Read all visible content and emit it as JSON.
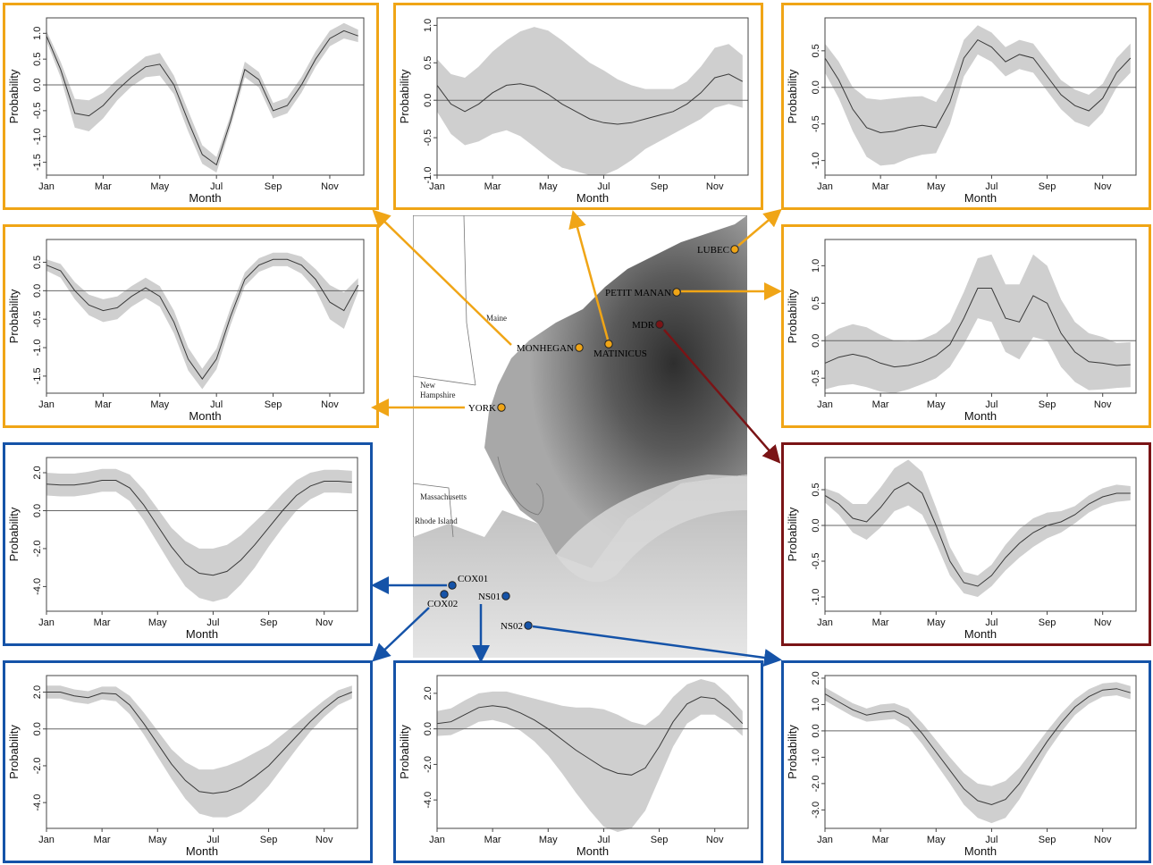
{
  "colors": {
    "gulf_of_maine": "#f0a516",
    "mdr": "#7a1416",
    "southern": "#1553a8",
    "band": "#cfcfcf",
    "line": "#3a3a3a"
  },
  "map": {
    "state_labels": [
      "Maine",
      "New Hampshire",
      "Massachusetts",
      "Rhode Island"
    ],
    "stations": [
      {
        "id": "lubec",
        "name": "LUBEC",
        "group": "gulf_of_maine"
      },
      {
        "id": "petit_manan",
        "name": "PETIT MANAN",
        "group": "gulf_of_maine"
      },
      {
        "id": "mdr",
        "name": "MDR",
        "group": "mdr"
      },
      {
        "id": "monhegan",
        "name": "MONHEGAN",
        "group": "gulf_of_maine"
      },
      {
        "id": "matinicus",
        "name": "MATINICUS",
        "group": "gulf_of_maine"
      },
      {
        "id": "york",
        "name": "YORK",
        "group": "gulf_of_maine"
      },
      {
        "id": "cox01",
        "name": "COX01",
        "group": "southern"
      },
      {
        "id": "cox02",
        "name": "COX02",
        "group": "southern"
      },
      {
        "id": "ns01",
        "name": "NS01",
        "group": "southern"
      },
      {
        "id": "ns02",
        "name": "NS02",
        "group": "southern"
      }
    ]
  },
  "chart_data": [
    {
      "station": "MONHEGAN",
      "type": "line",
      "xlabel": "Month",
      "ylabel": "Probability",
      "x_ticks": [
        "Jan",
        "Mar",
        "May",
        "Jul",
        "Sep",
        "Nov"
      ],
      "xlim": [
        1,
        12.2
      ],
      "ylim": [
        -1.75,
        1.3
      ],
      "y_ticks": [
        -1.5,
        -1.0,
        -0.5,
        0.0,
        0.5,
        1.0
      ],
      "y_tick_labels": [
        "-1.5",
        "-1.0",
        "-0.5",
        "0.0",
        "0.5",
        "1.0"
      ],
      "x": [
        1,
        1.5,
        2,
        2.5,
        3,
        3.5,
        4,
        4.5,
        5,
        5.5,
        6,
        6.5,
        7,
        7.5,
        8,
        8.5,
        9,
        9.5,
        10,
        10.5,
        11,
        11.5,
        12
      ],
      "y": [
        0.95,
        0.3,
        -0.55,
        -0.6,
        -0.4,
        -0.1,
        0.15,
        0.35,
        0.4,
        0.0,
        -0.7,
        -1.35,
        -1.55,
        -0.7,
        0.3,
        0.1,
        -0.5,
        -0.4,
        0.0,
        0.5,
        0.9,
        1.05,
        0.95
      ],
      "half_width": [
        0.1,
        0.15,
        0.28,
        0.3,
        0.25,
        0.2,
        0.18,
        0.2,
        0.22,
        0.18,
        0.2,
        0.18,
        0.15,
        0.12,
        0.15,
        0.15,
        0.15,
        0.15,
        0.15,
        0.15,
        0.15,
        0.15,
        0.12
      ]
    },
    {
      "station": "MATINICUS",
      "type": "line",
      "xlabel": "Month",
      "ylabel": "Probability",
      "x_ticks": [
        "Jan",
        "Mar",
        "May",
        "Jul",
        "Sep",
        "Nov"
      ],
      "xlim": [
        1,
        12.2
      ],
      "ylim": [
        -1.0,
        1.1
      ],
      "y_ticks": [
        -1.0,
        -0.5,
        0.0,
        0.5,
        1.0
      ],
      "y_tick_labels": [
        "-1.0",
        "-0.5",
        "0.0",
        "0.5",
        "1.0"
      ],
      "x": [
        1,
        1.5,
        2,
        2.5,
        3,
        3.5,
        4,
        4.5,
        5,
        5.5,
        6,
        6.5,
        7,
        7.5,
        8,
        8.5,
        9,
        9.5,
        10,
        10.5,
        11,
        11.5,
        12
      ],
      "y": [
        0.2,
        -0.05,
        -0.15,
        -0.05,
        0.1,
        0.2,
        0.22,
        0.18,
        0.08,
        -0.05,
        -0.15,
        -0.25,
        -0.3,
        -0.32,
        -0.3,
        -0.25,
        -0.2,
        -0.15,
        -0.05,
        0.1,
        0.3,
        0.35,
        0.25
      ],
      "half_width": [
        0.35,
        0.4,
        0.45,
        0.5,
        0.55,
        0.6,
        0.7,
        0.8,
        0.85,
        0.85,
        0.8,
        0.75,
        0.7,
        0.6,
        0.5,
        0.4,
        0.35,
        0.3,
        0.3,
        0.35,
        0.4,
        0.4,
        0.35
      ]
    },
    {
      "station": "LUBEC",
      "type": "line",
      "xlabel": "Month",
      "ylabel": "Probability",
      "x_ticks": [
        "Jan",
        "Mar",
        "May",
        "Jul",
        "Sep",
        "Nov"
      ],
      "xlim": [
        1,
        12.2
      ],
      "ylim": [
        -1.2,
        0.95
      ],
      "y_ticks": [
        -1.0,
        -0.5,
        0.0,
        0.5
      ],
      "y_tick_labels": [
        "-1.0",
        "-0.5",
        "0.0",
        "0.5"
      ],
      "x": [
        1,
        1.5,
        2,
        2.5,
        3,
        3.5,
        4,
        4.5,
        5,
        5.5,
        6,
        6.5,
        7,
        7.5,
        8,
        8.5,
        9,
        9.5,
        10,
        10.5,
        11,
        11.5,
        12
      ],
      "y": [
        0.4,
        0.1,
        -0.3,
        -0.55,
        -0.62,
        -0.6,
        -0.55,
        -0.52,
        -0.55,
        -0.2,
        0.4,
        0.65,
        0.55,
        0.35,
        0.45,
        0.4,
        0.15,
        -0.1,
        -0.25,
        -0.32,
        -0.15,
        0.2,
        0.4
      ],
      "half_width": [
        0.2,
        0.25,
        0.3,
        0.4,
        0.45,
        0.45,
        0.42,
        0.4,
        0.35,
        0.3,
        0.25,
        0.2,
        0.2,
        0.2,
        0.2,
        0.2,
        0.2,
        0.2,
        0.22,
        0.22,
        0.2,
        0.2,
        0.2
      ]
    },
    {
      "station": "YORK",
      "type": "line",
      "xlabel": "Month",
      "ylabel": "Probability",
      "x_ticks": [
        "Jan",
        "Mar",
        "May",
        "Jul",
        "Sep",
        "Nov"
      ],
      "xlim": [
        1,
        12.2
      ],
      "ylim": [
        -1.8,
        0.9
      ],
      "y_ticks": [
        -1.5,
        -1.0,
        -0.5,
        0.0,
        0.5
      ],
      "y_tick_labels": [
        "-1.5",
        "-1.0",
        "-0.5",
        "0.0",
        "0.5"
      ],
      "x": [
        1,
        1.5,
        2,
        2.5,
        3,
        3.5,
        4,
        4.5,
        5,
        5.5,
        6,
        6.5,
        7,
        7.5,
        8,
        8.5,
        9,
        9.5,
        10,
        10.5,
        11,
        11.5,
        12
      ],
      "y": [
        0.45,
        0.35,
        0.0,
        -0.25,
        -0.35,
        -0.3,
        -0.1,
        0.05,
        -0.1,
        -0.55,
        -1.2,
        -1.55,
        -1.2,
        -0.45,
        0.2,
        0.45,
        0.55,
        0.55,
        0.45,
        0.2,
        -0.2,
        -0.35,
        0.1
      ],
      "half_width": [
        0.1,
        0.12,
        0.15,
        0.18,
        0.2,
        0.2,
        0.18,
        0.18,
        0.18,
        0.2,
        0.2,
        0.18,
        0.18,
        0.15,
        0.12,
        0.12,
        0.12,
        0.12,
        0.15,
        0.18,
        0.3,
        0.32,
        0.12
      ]
    },
    {
      "station": "PETIT MANAN",
      "type": "line",
      "xlabel": "Month",
      "ylabel": "Probability",
      "x_ticks": [
        "Jan",
        "Mar",
        "May",
        "Jul",
        "Sep",
        "Nov"
      ],
      "xlim": [
        1,
        12.2
      ],
      "ylim": [
        -0.7,
        1.35
      ],
      "y_ticks": [
        -0.5,
        0.0,
        0.5,
        1.0
      ],
      "y_tick_labels": [
        "-0.5",
        "0.0",
        "0.5",
        "1.0"
      ],
      "x": [
        1,
        1.5,
        2,
        2.5,
        3,
        3.5,
        4,
        4.5,
        5,
        5.5,
        6,
        6.5,
        7,
        7.5,
        8,
        8.5,
        9,
        9.5,
        10,
        10.5,
        11,
        11.5,
        12
      ],
      "y": [
        -0.3,
        -0.22,
        -0.18,
        -0.22,
        -0.3,
        -0.35,
        -0.33,
        -0.28,
        -0.2,
        -0.05,
        0.3,
        0.7,
        0.7,
        0.3,
        0.25,
        0.6,
        0.5,
        0.1,
        -0.15,
        -0.28,
        -0.3,
        -0.33,
        -0.32
      ],
      "half_width": [
        0.35,
        0.38,
        0.4,
        0.4,
        0.38,
        0.35,
        0.32,
        0.3,
        0.3,
        0.3,
        0.35,
        0.4,
        0.45,
        0.45,
        0.5,
        0.55,
        0.5,
        0.45,
        0.4,
        0.38,
        0.35,
        0.3,
        0.3
      ]
    },
    {
      "station": "MDR",
      "type": "line",
      "xlabel": "Month",
      "ylabel": "Probability",
      "x_ticks": [
        "Jan",
        "Mar",
        "May",
        "Jul",
        "Sep",
        "Nov"
      ],
      "xlim": [
        1,
        12.2
      ],
      "ylim": [
        -1.2,
        0.95
      ],
      "y_ticks": [
        -1.0,
        -0.5,
        0.0,
        0.5
      ],
      "y_tick_labels": [
        "-1.0",
        "-0.5",
        "0.0",
        "0.5"
      ],
      "x": [
        1,
        1.5,
        2,
        2.5,
        3,
        3.5,
        4,
        4.5,
        5,
        5.5,
        6,
        6.5,
        7,
        7.5,
        8,
        8.5,
        9,
        9.5,
        10,
        10.5,
        11,
        11.5,
        12
      ],
      "y": [
        0.42,
        0.3,
        0.1,
        0.05,
        0.25,
        0.5,
        0.6,
        0.45,
        0.0,
        -0.5,
        -0.8,
        -0.85,
        -0.7,
        -0.45,
        -0.25,
        -0.1,
        0.0,
        0.05,
        0.15,
        0.3,
        0.4,
        0.45,
        0.45
      ],
      "half_width": [
        0.1,
        0.15,
        0.2,
        0.25,
        0.28,
        0.3,
        0.32,
        0.3,
        0.25,
        0.2,
        0.15,
        0.15,
        0.15,
        0.18,
        0.2,
        0.2,
        0.18,
        0.15,
        0.12,
        0.12,
        0.12,
        0.12,
        0.1
      ]
    },
    {
      "station": "COX01",
      "type": "line",
      "xlabel": "Month",
      "ylabel": "Probability",
      "x_ticks": [
        "Jan",
        "Mar",
        "May",
        "Jul",
        "Sep",
        "Nov"
      ],
      "xlim": [
        1,
        12.2
      ],
      "ylim": [
        -5.3,
        2.8
      ],
      "y_ticks": [
        -4.0,
        -2.0,
        0.0,
        2.0
      ],
      "y_tick_labels": [
        "-4.0",
        "-2.0",
        "0.0",
        "2.0"
      ],
      "x": [
        1,
        1.5,
        2,
        2.5,
        3,
        3.5,
        4,
        4.5,
        5,
        5.5,
        6,
        6.5,
        7,
        7.5,
        8,
        8.5,
        9,
        9.5,
        10,
        10.5,
        11,
        11.5,
        12
      ],
      "y": [
        1.4,
        1.35,
        1.35,
        1.45,
        1.6,
        1.6,
        1.2,
        0.3,
        -0.8,
        -1.9,
        -2.8,
        -3.3,
        -3.4,
        -3.2,
        -2.6,
        -1.8,
        -0.9,
        0.0,
        0.8,
        1.3,
        1.55,
        1.55,
        1.5
      ],
      "half_width": [
        0.6,
        0.6,
        0.6,
        0.6,
        0.6,
        0.6,
        0.7,
        0.8,
        0.9,
        1.0,
        1.2,
        1.3,
        1.4,
        1.4,
        1.3,
        1.2,
        1.0,
        0.9,
        0.8,
        0.7,
        0.6,
        0.6,
        0.6
      ]
    },
    {
      "station": "COX02",
      "type": "line",
      "xlabel": "Month",
      "ylabel": "Probability",
      "x_ticks": [
        "Jan",
        "Mar",
        "May",
        "Jul",
        "Sep",
        "Nov"
      ],
      "xlim": [
        1,
        12.2
      ],
      "ylim": [
        -5.4,
        2.9
      ],
      "y_ticks": [
        -4.0,
        -2.0,
        0.0,
        2.0
      ],
      "y_tick_labels": [
        "-4.0",
        "-2.0",
        "0.0",
        "2.0"
      ],
      "x": [
        1,
        1.5,
        2,
        2.5,
        3,
        3.5,
        4,
        4.5,
        5,
        5.5,
        6,
        6.5,
        7,
        7.5,
        8,
        8.5,
        9,
        9.5,
        10,
        10.5,
        11,
        11.5,
        12
      ],
      "y": [
        2.0,
        2.0,
        1.8,
        1.7,
        1.95,
        1.9,
        1.3,
        0.3,
        -0.8,
        -1.9,
        -2.8,
        -3.4,
        -3.5,
        -3.4,
        -3.1,
        -2.6,
        -2.0,
        -1.2,
        -0.4,
        0.4,
        1.1,
        1.7,
        2.0
      ],
      "half_width": [
        0.35,
        0.35,
        0.35,
        0.35,
        0.35,
        0.4,
        0.5,
        0.6,
        0.7,
        0.8,
        1.0,
        1.2,
        1.3,
        1.4,
        1.4,
        1.3,
        1.1,
        0.9,
        0.7,
        0.55,
        0.45,
        0.4,
        0.35
      ]
    },
    {
      "station": "NS01",
      "type": "line",
      "xlabel": "Month",
      "ylabel": "Probability",
      "x_ticks": [
        "Jan",
        "Mar",
        "May",
        "Jul",
        "Sep",
        "Nov"
      ],
      "xlim": [
        1,
        12.2
      ],
      "ylim": [
        -5.6,
        3.0
      ],
      "y_ticks": [
        -4.0,
        -2.0,
        0.0,
        2.0
      ],
      "y_tick_labels": [
        "-4.0",
        "-2.0",
        "0.0",
        "2.0"
      ],
      "x": [
        1,
        1.5,
        2,
        2.5,
        3,
        3.5,
        4,
        4.5,
        5,
        5.5,
        6,
        6.5,
        7,
        7.5,
        8,
        8.5,
        9,
        9.5,
        10,
        10.5,
        11,
        11.5,
        12
      ],
      "y": [
        0.3,
        0.4,
        0.8,
        1.2,
        1.3,
        1.2,
        0.9,
        0.5,
        0.0,
        -0.6,
        -1.2,
        -1.7,
        -2.2,
        -2.5,
        -2.6,
        -2.2,
        -1.0,
        0.4,
        1.4,
        1.8,
        1.7,
        1.1,
        0.3
      ],
      "half_width": [
        0.7,
        0.75,
        0.8,
        0.8,
        0.8,
        0.9,
        1.0,
        1.2,
        1.5,
        1.9,
        2.4,
        2.9,
        3.3,
        3.3,
        3.0,
        2.4,
        1.8,
        1.4,
        1.1,
        1.0,
        0.9,
        0.8,
        0.7
      ]
    },
    {
      "station": "NS02",
      "type": "line",
      "xlabel": "Month",
      "ylabel": "Probability",
      "x_ticks": [
        "Jan",
        "Mar",
        "May",
        "Jul",
        "Sep",
        "Nov"
      ],
      "xlim": [
        1,
        12.2
      ],
      "ylim": [
        -3.7,
        2.1
      ],
      "y_ticks": [
        -3.0,
        -2.0,
        -1.0,
        0.0,
        1.0,
        2.0
      ],
      "y_tick_labels": [
        "-3.0",
        "-2.0",
        "-1.0",
        "0.0",
        "1.0",
        "2.0"
      ],
      "x": [
        1,
        1.5,
        2,
        2.5,
        3,
        3.5,
        4,
        4.5,
        5,
        5.5,
        6,
        6.5,
        7,
        7.5,
        8,
        8.5,
        9,
        9.5,
        10,
        10.5,
        11,
        11.5,
        12
      ],
      "y": [
        1.4,
        1.1,
        0.8,
        0.6,
        0.7,
        0.75,
        0.5,
        -0.1,
        -0.8,
        -1.5,
        -2.2,
        -2.65,
        -2.8,
        -2.6,
        -2.0,
        -1.2,
        -0.4,
        0.3,
        0.9,
        1.3,
        1.55,
        1.6,
        1.45
      ],
      "half_width": [
        0.25,
        0.25,
        0.25,
        0.25,
        0.3,
        0.3,
        0.35,
        0.4,
        0.45,
        0.5,
        0.6,
        0.65,
        0.7,
        0.7,
        0.6,
        0.5,
        0.4,
        0.35,
        0.3,
        0.28,
        0.25,
        0.25,
        0.25
      ]
    }
  ]
}
